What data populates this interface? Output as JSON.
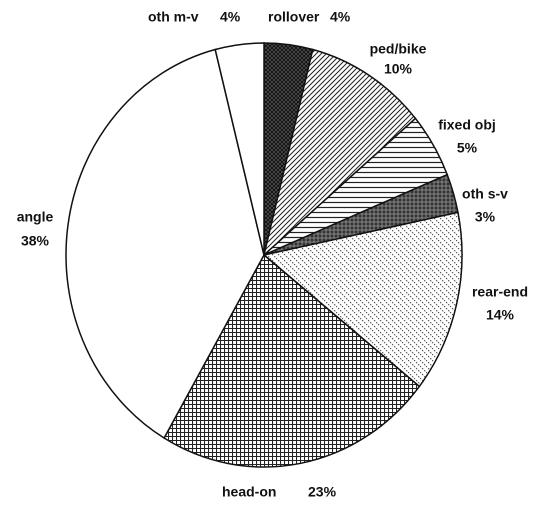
{
  "chart_data": {
    "type": "pie",
    "categories": [
      "rollover",
      "ped/bike",
      "fixed obj",
      "oth s-v",
      "rear-end",
      "head-on",
      "angle",
      "oth m-v"
    ],
    "values": [
      4,
      10,
      5,
      3,
      14,
      23,
      38,
      4
    ],
    "value_labels": [
      "4%",
      "10%",
      "5%",
      "3%",
      "14%",
      "23%",
      "38%",
      "4%"
    ]
  }
}
